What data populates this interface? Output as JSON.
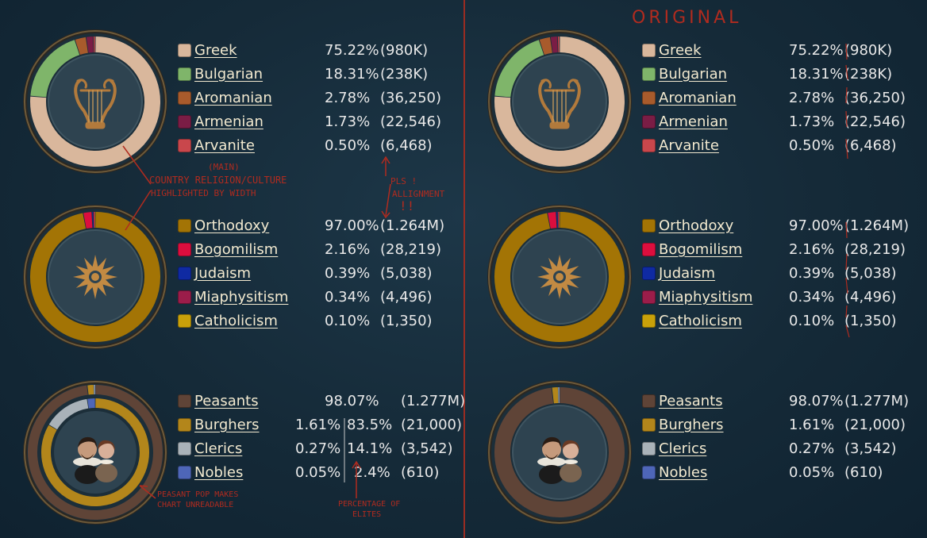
{
  "left": {
    "culture": [
      {
        "name": "Greek",
        "pct": "75.22%",
        "count": "(980K)",
        "color": "#d9b79c",
        "share": 0.7522
      },
      {
        "name": "Bulgarian",
        "pct": "18.31%",
        "count": "(238K)",
        "color": "#7fb56a",
        "share": 0.1831
      },
      {
        "name": "Aromanian",
        "pct": "2.78%",
        "count": "(36,250)",
        "color": "#a85b2c",
        "share": 0.0278
      },
      {
        "name": "Armenian",
        "pct": "1.73%",
        "count": "(22,546)",
        "color": "#7a1d45",
        "share": 0.0173
      },
      {
        "name": "Arvanite",
        "pct": "0.50%",
        "count": "(6,468)",
        "color": "#c9474c",
        "share": 0.005
      }
    ],
    "religion": [
      {
        "name": "Orthodoxy",
        "pct": "97.00%",
        "count": "(1.264M)",
        "color": "#a37405",
        "share": 0.97
      },
      {
        "name": "Bogomilism",
        "pct": "2.16%",
        "count": "(28,219)",
        "color": "#dc0e3e",
        "share": 0.0216
      },
      {
        "name": "Judaism",
        "pct": "0.39%",
        "count": "(5,038)",
        "color": "#0f2aa2",
        "share": 0.0039
      },
      {
        "name": "Miaphysitism",
        "pct": "0.34%",
        "count": "(4,496)",
        "color": "#9b1d4a",
        "share": 0.0034
      },
      {
        "name": "Catholicism",
        "pct": "0.10%",
        "count": "(1,350)",
        "color": "#c9a10a",
        "share": 0.001
      }
    ],
    "estates": [
      {
        "name": "Peasants",
        "pct": "98.07%",
        "elite_pct": "",
        "count": "(1.277M)",
        "color": "#5f4437",
        "share": 0.9807,
        "elite_share": 0
      },
      {
        "name": "Burghers",
        "pct": "1.61%",
        "elite_pct": "83.5%",
        "count": "(21,000)",
        "color": "#b3861b",
        "share": 0.0161,
        "elite_share": 0.835
      },
      {
        "name": "Clerics",
        "pct": "0.27%",
        "elite_pct": "14.1%",
        "count": "(3,542)",
        "color": "#a9b2b9",
        "share": 0.0027,
        "elite_share": 0.141
      },
      {
        "name": "Nobles",
        "pct": "0.05%",
        "elite_pct": "2.4%",
        "count": "(610)",
        "color": "#4e66b8",
        "share": 0.0005,
        "elite_share": 0.024
      }
    ]
  },
  "right": {
    "culture": [
      {
        "name": "Greek",
        "pct": "75.22%",
        "count": "(980K)",
        "color": "#d9b79c",
        "share": 0.7522
      },
      {
        "name": "Bulgarian",
        "pct": "18.31%",
        "count": "(238K)",
        "color": "#7fb56a",
        "share": 0.1831
      },
      {
        "name": "Aromanian",
        "pct": "2.78%",
        "count": "(36,250)",
        "color": "#a85b2c",
        "share": 0.0278
      },
      {
        "name": "Armenian",
        "pct": "1.73%",
        "count": "(22,546)",
        "color": "#7a1d45",
        "share": 0.0173
      },
      {
        "name": "Arvanite",
        "pct": "0.50%",
        "count": "(6,468)",
        "color": "#c9474c",
        "share": 0.005
      }
    ],
    "religion": [
      {
        "name": "Orthodoxy",
        "pct": "97.00%",
        "count": "(1.264M)",
        "color": "#a37405",
        "share": 0.97
      },
      {
        "name": "Bogomilism",
        "pct": "2.16%",
        "count": "(28,219)",
        "color": "#dc0e3e",
        "share": 0.0216
      },
      {
        "name": "Judaism",
        "pct": "0.39%",
        "count": "(5,038)",
        "color": "#0f2aa2",
        "share": 0.0039
      },
      {
        "name": "Miaphysitism",
        "pct": "0.34%",
        "count": "(4,496)",
        "color": "#9b1d4a",
        "share": 0.0034
      },
      {
        "name": "Catholicism",
        "pct": "0.10%",
        "count": "(1,350)",
        "color": "#c9a10a",
        "share": 0.001
      }
    ],
    "estates": [
      {
        "name": "Peasants",
        "pct": "98.07%",
        "count": "(1.277M)",
        "color": "#5f4437",
        "share": 0.9807
      },
      {
        "name": "Burghers",
        "pct": "1.61%",
        "count": "(21,000)",
        "color": "#b3861b",
        "share": 0.0161
      },
      {
        "name": "Clerics",
        "pct": "0.27%",
        "count": "(3,542)",
        "color": "#a9b2b9",
        "share": 0.0027
      },
      {
        "name": "Nobles",
        "pct": "0.05%",
        "count": "(610)",
        "color": "#4e66b8",
        "share": 0.0005
      }
    ]
  },
  "annotations": {
    "original": "ORIGINAL",
    "main": "(MAIN)",
    "country_religion": "COUNTRY RELIGION/CULTURE",
    "highlighted": "HIGHLIGHTED BY WIDTH",
    "pls": "PLS !",
    "alignment": "ALLIGNMENT",
    "exclaim": "!!",
    "peasant_line1": "PEASANT POP MAKES",
    "peasant_line2": "CHART UNREADABLE",
    "elites_line1": "PERCENTAGE OF",
    "elites_line2": "ELITES"
  }
}
